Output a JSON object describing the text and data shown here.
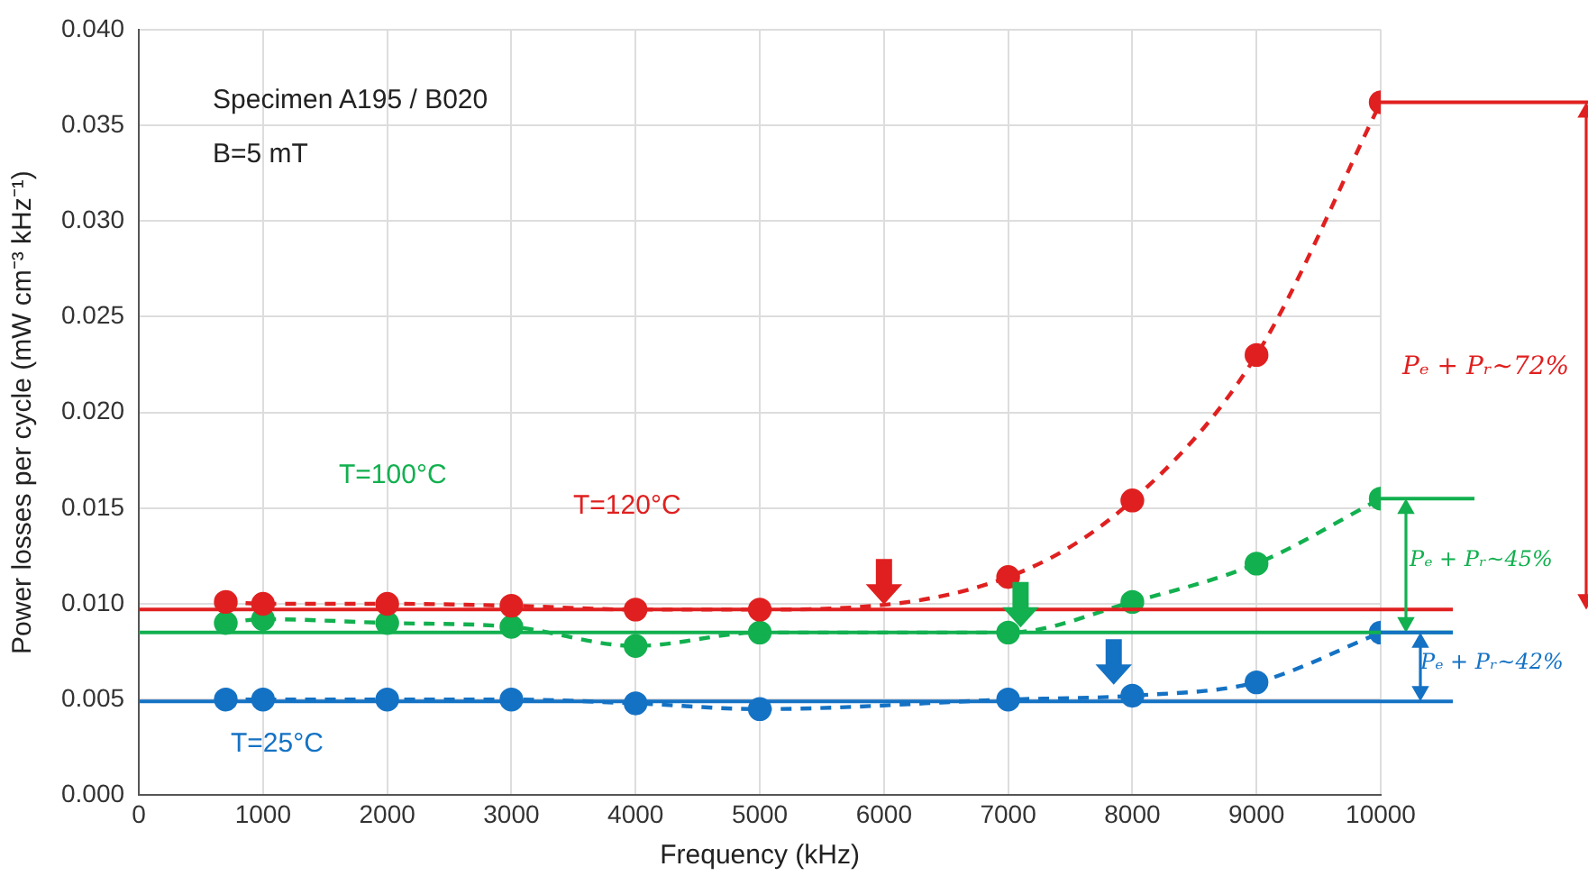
{
  "chart_data": {
    "type": "line",
    "xlabel": "Frequency (kHz)",
    "ylabel": "Power losses per cycle (mW cm⁻³ kHz⁻¹)",
    "series": [
      {
        "color": "#e02020",
        "x": [
          700,
          1000,
          2000,
          3000,
          4000,
          5000,
          7000,
          8000,
          9000,
          10000
        ],
        "values": [
          0.0101,
          0.01,
          0.01,
          0.0099,
          0.0097,
          0.0097,
          0.0114,
          0.0154,
          0.023,
          0.0362
        ]
      },
      {
        "color": "#12b04f",
        "x": [
          700,
          1000,
          2000,
          3000,
          4000,
          5000,
          7000,
          8000,
          9000,
          10000
        ],
        "values": [
          0.009,
          0.0092,
          0.009,
          0.0088,
          0.0078,
          0.0085,
          0.0085,
          0.0101,
          0.0121,
          0.0155
        ]
      },
      {
        "color": "#1472c4",
        "x": [
          700,
          1000,
          2000,
          3000,
          4000,
          5000,
          7000,
          8000,
          9000,
          10000
        ],
        "values": [
          0.005,
          0.005,
          0.005,
          0.005,
          0.0048,
          0.0045,
          0.005,
          0.0052,
          0.0059,
          0.0085
        ]
      }
    ],
    "ref_lines": [
      {
        "axis": "y",
        "value": 0.0097,
        "color": "#e02020"
      },
      {
        "axis": "y",
        "value": 0.0085,
        "color": "#12b04f"
      },
      {
        "axis": "y",
        "value": 0.0049,
        "color": "#1472c4"
      }
    ],
    "annotations": [
      "Specimen A195 / B020",
      "B=5 mT",
      "T=100°C",
      "T=120°C",
      "T=25°C",
      "Pₑ + Pᵣ~72%",
      "Pₑ + Pᵣ~45%",
      "Pₑ + Pᵣ~42%"
    ],
    "xlim": [
      0,
      10000
    ],
    "xticks": [
      0,
      1000,
      2000,
      3000,
      4000,
      5000,
      6000,
      7000,
      8000,
      9000,
      10000
    ],
    "ylim": [
      0,
      0.04
    ],
    "yticks": [
      {
        "value": 0,
        "label": "0.000"
      },
      {
        "value": 0.005,
        "label": "0.005"
      },
      {
        "value": 0.01,
        "label": "0.010"
      },
      {
        "value": 0.015,
        "label": "0.015"
      },
      {
        "value": 0.02,
        "label": "0.020"
      },
      {
        "value": 0.025,
        "label": "0.025"
      },
      {
        "value": 0.03,
        "label": "0.030"
      },
      {
        "value": 0.035,
        "label": "0.035"
      },
      {
        "value": 0.04,
        "label": "0.040"
      }
    ],
    "grid": true,
    "legend": false,
    "marker": "circle",
    "line_style": "dashed"
  }
}
